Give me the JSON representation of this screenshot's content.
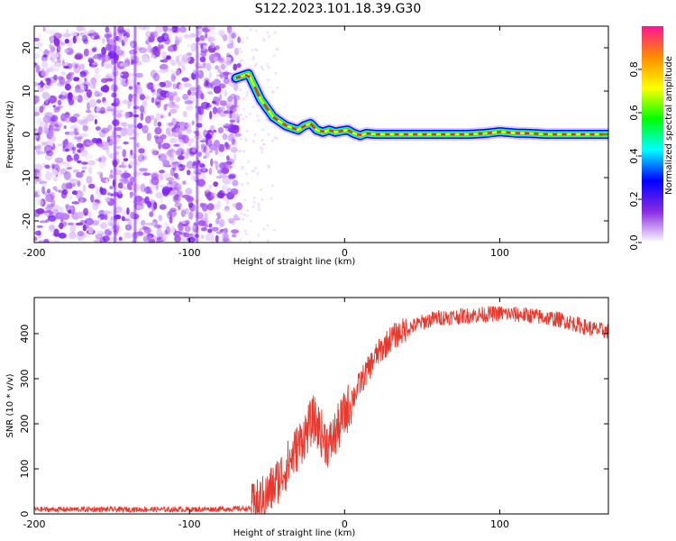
{
  "title": "S122.2023.101.18.39.G30",
  "chart_data": [
    {
      "type": "heatmap",
      "xlabel": "Height of straight line (km)",
      "ylabel": "Frequency (Hz)",
      "xlim": [
        -200,
        170
      ],
      "ylim": [
        -25,
        25
      ],
      "x_ticks": [
        -200,
        -100,
        0,
        100
      ],
      "y_ticks": [
        -20,
        -10,
        0,
        10,
        20
      ],
      "colorbar": {
        "label": "Normalized spectral amplitude",
        "range": [
          0,
          1
        ],
        "ticks": [
          "0.0",
          "0.2",
          "0.4",
          "0.6",
          "0.8"
        ],
        "colormap": [
          "#ffffff",
          "#8a2be2",
          "#0000ff",
          "#00ffff",
          "#00ff00",
          "#ffff00",
          "#ff8c00",
          "#ff1493"
        ]
      },
      "ridge": {
        "x": [
          -70,
          -62,
          -58,
          -54,
          -50,
          -46,
          -42,
          -38,
          -34,
          -30,
          -26,
          -22,
          -18,
          -14,
          -10,
          -6,
          -2,
          2,
          6,
          10,
          14,
          20,
          30,
          40,
          50,
          60,
          70,
          80,
          90,
          100,
          110,
          120,
          130,
          140,
          150,
          160,
          170
        ],
        "y": [
          13,
          14,
          11,
          8,
          6,
          4,
          3,
          2,
          1.5,
          1,
          2,
          2.5,
          1,
          0.5,
          1,
          0.5,
          0.8,
          1,
          0.2,
          -0.3,
          0.2,
          0,
          0,
          0,
          0,
          0,
          0,
          0,
          0.2,
          0.6,
          0.3,
          0.2,
          0,
          0,
          0,
          0,
          0
        ]
      },
      "noise_region": {
        "x_range": [
          -200,
          -68
        ],
        "y_range": [
          -25,
          25
        ]
      }
    },
    {
      "type": "line",
      "xlabel": "Height of straight line (km)",
      "ylabel": "SNR (10 * v/v)",
      "xlim": [
        -200,
        170
      ],
      "ylim": [
        0,
        480
      ],
      "x_ticks": [
        -200,
        -100,
        0,
        100
      ],
      "y_ticks": [
        0,
        100,
        200,
        300,
        400
      ],
      "color": "#e8372c",
      "envelope": {
        "x": [
          -200,
          -150,
          -100,
          -60,
          -50,
          -40,
          -30,
          -20,
          -10,
          0,
          10,
          20,
          30,
          40,
          50,
          60,
          80,
          100,
          120,
          140,
          160,
          170
        ],
        "y": [
          10,
          10,
          10,
          12,
          40,
          90,
          150,
          210,
          150,
          220,
          290,
          350,
          390,
          410,
          425,
          435,
          440,
          445,
          440,
          430,
          410,
          405
        ]
      }
    }
  ]
}
